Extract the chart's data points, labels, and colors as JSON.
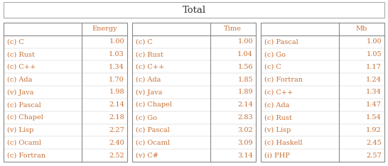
{
  "title": "Total",
  "energy_table": {
    "header": [
      "",
      "Energy"
    ],
    "rows": [
      [
        "(c) C",
        "1.00"
      ],
      [
        "(c) Rust",
        "1.03"
      ],
      [
        "(c) C++",
        "1.34"
      ],
      [
        "(c) Ada",
        "1.70"
      ],
      [
        "(v) Java",
        "1.98"
      ],
      [
        "(c) Pascal",
        "2.14"
      ],
      [
        "(c) Chapel",
        "2.18"
      ],
      [
        "(v) Lisp",
        "2.27"
      ],
      [
        "(c) Ocaml",
        "2.40"
      ],
      [
        "(c) Fortran",
        "2.52"
      ]
    ]
  },
  "time_table": {
    "header": [
      "",
      "Time"
    ],
    "rows": [
      [
        "(c) C",
        "1.00"
      ],
      [
        "(c) Rust",
        "1.04"
      ],
      [
        "(c) C++",
        "1.56"
      ],
      [
        "(c) Ada",
        "1.85"
      ],
      [
        "(v) Java",
        "1.89"
      ],
      [
        "(c) Chapel",
        "2.14"
      ],
      [
        "(c) Go",
        "2.83"
      ],
      [
        "(c) Pascal",
        "3.02"
      ],
      [
        "(c) Ocaml",
        "3.09"
      ],
      [
        "(v) C#",
        "3.14"
      ]
    ]
  },
  "mb_table": {
    "header": [
      "",
      "Mb"
    ],
    "rows": [
      [
        "(c) Pascal",
        "1.00"
      ],
      [
        "(c) Go",
        "1.05"
      ],
      [
        "(c) C",
        "1.17"
      ],
      [
        "(c) Fortran",
        "1.24"
      ],
      [
        "(c) C++",
        "1.34"
      ],
      [
        "(c) Ada",
        "1.47"
      ],
      [
        "(c) Rust",
        "1.54"
      ],
      [
        "(v) Lisp",
        "1.92"
      ],
      [
        "(c) Haskell",
        "2.45"
      ],
      [
        "(i) PHP",
        "2.57"
      ]
    ]
  },
  "bg_color": "#ffffff",
  "text_color": "#c87137",
  "header_text_color": "#c87137",
  "border_color": "#888888",
  "title_border_color": "#aaaaaa",
  "font_size": 7.0,
  "header_font_size": 7.0,
  "title_font_size": 9.5
}
